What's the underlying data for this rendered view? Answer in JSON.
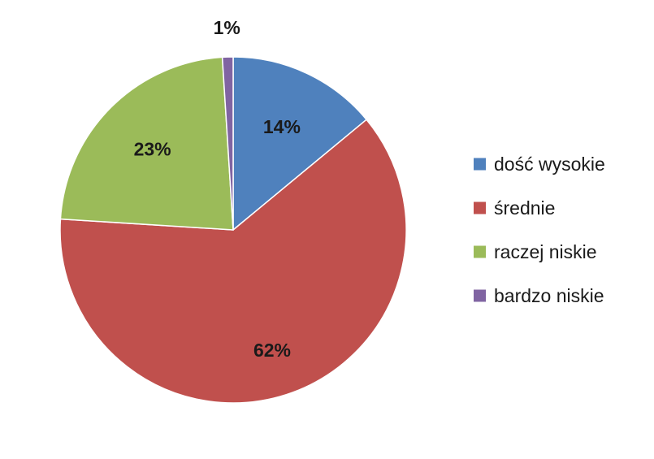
{
  "chart_data": {
    "type": "pie",
    "slices": [
      {
        "label": "dość wysokie",
        "value": 14,
        "display": "14%",
        "color": "#4f81bd"
      },
      {
        "label": "średnie",
        "value": 62,
        "display": "62%",
        "color": "#c0504d"
      },
      {
        "label": "raczej niskie",
        "value": 23,
        "display": "23%",
        "color": "#9bbb59"
      },
      {
        "label": "bardzo niskie",
        "value": 1,
        "display": "1%",
        "color": "#8064a2"
      }
    ],
    "legend_position": "right",
    "start_angle": "top, clockwise"
  }
}
